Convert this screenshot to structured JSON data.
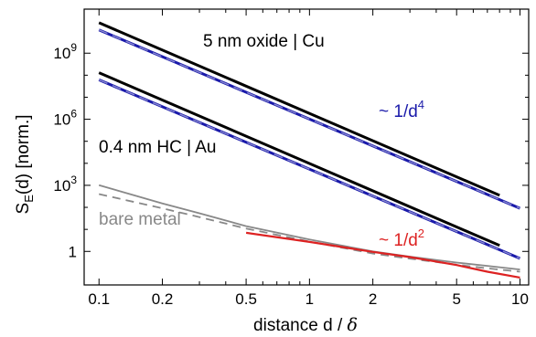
{
  "chart_data": {
    "type": "line",
    "x_scale": "log",
    "y_scale": "log",
    "xlim": [
      0.085,
      11
    ],
    "ylim": [
      0.03,
      100000000000.0
    ],
    "grid": false,
    "xlabel": {
      "main": "distance  d / ",
      "symbol": "δ"
    },
    "ylabel": {
      "s": "S",
      "sub": "E",
      "rest": "(d) [norm.]"
    },
    "x_ticks": [
      {
        "value": 0.1,
        "label": "0.1"
      },
      {
        "value": 0.2,
        "label": "0.2"
      },
      {
        "value": 0.5,
        "label": "0.5"
      },
      {
        "value": 1,
        "label": "1"
      },
      {
        "value": 2,
        "label": "2"
      },
      {
        "value": 5,
        "label": "5"
      },
      {
        "value": 10,
        "label": "10"
      }
    ],
    "x_minor_ticks": [
      0.3,
      0.4,
      0.6,
      0.7,
      0.8,
      0.9,
      3,
      4,
      6,
      7,
      8,
      9
    ],
    "y_ticks": [
      {
        "value": 1,
        "base": "1",
        "exp": ""
      },
      {
        "value": 1000,
        "base": "10",
        "exp": "3"
      },
      {
        "value": 1000000,
        "base": "10",
        "exp": "6"
      },
      {
        "value": 1000000000,
        "base": "10",
        "exp": "9"
      }
    ],
    "y_minor_ticks": [
      10,
      100,
      10000,
      100000,
      10000000,
      100000000
    ],
    "series": [
      {
        "color": "#000000",
        "width": 3,
        "dash": "",
        "points": [
          [
            0.1,
            24000000000.0
          ],
          [
            8,
            350.0
          ]
        ]
      },
      {
        "color": "#1a1aaa",
        "width": 3,
        "dash": "",
        "points": [
          [
            0.1,
            11500000000.0
          ],
          [
            10,
            90.0
          ]
        ]
      },
      {
        "color": "#8a8ad0",
        "width": 1.4,
        "dash": "10,6",
        "points": [
          [
            0.1,
            11500000000.0
          ],
          [
            10,
            90.0
          ]
        ]
      },
      {
        "color": "#000000",
        "width": 3,
        "dash": "",
        "points": [
          [
            0.1,
            130000000.0
          ],
          [
            8,
            1.85
          ]
        ]
      },
      {
        "color": "#1a1aaa",
        "width": 3,
        "dash": "",
        "points": [
          [
            0.1,
            62000000.0
          ],
          [
            10,
            0.48
          ]
        ]
      },
      {
        "color": "#8a8ad0",
        "width": 1.4,
        "dash": "10,6",
        "points": [
          [
            0.1,
            62000000.0
          ],
          [
            10,
            0.48
          ]
        ]
      },
      {
        "color": "#888888",
        "width": 1.8,
        "dash": "",
        "points": [
          [
            0.1,
            1020.0
          ],
          [
            0.2,
            150.0
          ],
          [
            0.3,
            54.0
          ],
          [
            0.5,
            14.0
          ],
          [
            1,
            3.5
          ],
          [
            2,
            1.0
          ],
          [
            3,
            0.58
          ],
          [
            5,
            0.31
          ],
          [
            7,
            0.22
          ],
          [
            10,
            0.15
          ]
        ]
      },
      {
        "color": "#888888",
        "width": 1.8,
        "dash": "9,6",
        "points": [
          [
            0.1,
            400.0
          ],
          [
            0.2,
            90.0
          ],
          [
            0.3,
            36.0
          ],
          [
            0.5,
            11.0
          ],
          [
            1,
            2.8
          ],
          [
            2,
            0.8
          ],
          [
            3,
            0.47
          ],
          [
            5,
            0.25
          ],
          [
            7,
            0.17
          ],
          [
            10,
            0.12
          ]
        ]
      },
      {
        "color": "#dd2222",
        "width": 2.2,
        "dash": "",
        "points": [
          [
            0.5,
            7.0
          ],
          [
            1,
            2.7
          ],
          [
            2,
            0.95
          ],
          [
            3,
            0.55
          ],
          [
            5,
            0.24
          ],
          [
            7,
            0.12
          ],
          [
            10,
            0.065
          ]
        ]
      }
    ],
    "annotations": [
      {
        "text": "5 nm oxide | Cu",
        "color": "#000000"
      },
      {
        "text": "0.4 nm HC | Au",
        "color": "#000000"
      },
      {
        "text": "bare metal",
        "color": "#888888"
      },
      {
        "prefix": "~ 1/d",
        "sup": "4",
        "color": "#1a1aaa"
      },
      {
        "prefix": "~ 1/d",
        "sup": "2",
        "color": "#dd2222"
      }
    ]
  }
}
